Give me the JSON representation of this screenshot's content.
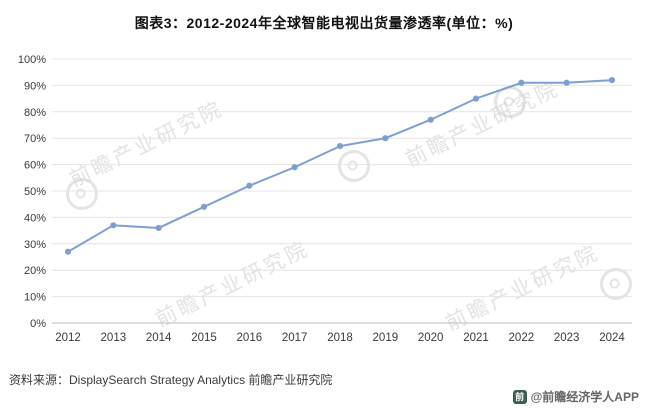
{
  "title": "图表3：2012-2024年全球智能电视出货量渗透率(单位：%)",
  "chart_data": {
    "type": "line",
    "categories": [
      "2012",
      "2013",
      "2014",
      "2015",
      "2016",
      "2017",
      "2018",
      "2019",
      "2020",
      "2021",
      "2022",
      "2023",
      "2024"
    ],
    "values": [
      27,
      37,
      36,
      44,
      52,
      59,
      67,
      70,
      77,
      85,
      91,
      91,
      92
    ],
    "title": "图表3：2012-2024年全球智能电视出货量渗透率(单位：%)",
    "xlabel": "",
    "ylabel": "",
    "ylim": [
      0,
      100
    ],
    "ytick_step": 10,
    "ytick_suffix": "%",
    "grid": true,
    "legend": "none",
    "line_color": "#7f9fd4",
    "marker": "circle"
  },
  "footer": {
    "source": "资料来源：DisplaySearch Strategy Analytics 前瞻产业研究院",
    "brand": "@前瞻经济学人APP",
    "brand_logo_glyph": "前"
  },
  "watermark": {
    "text": "前瞻产业研究院"
  }
}
